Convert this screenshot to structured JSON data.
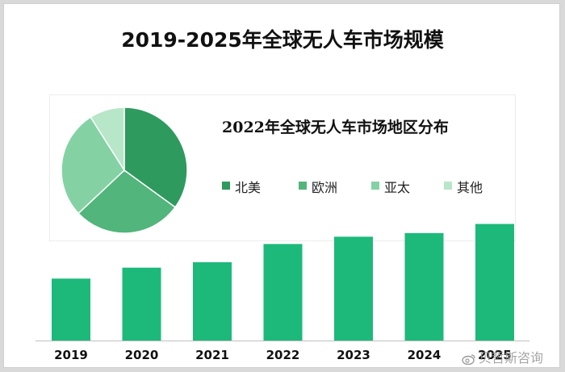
{
  "chart_data": [
    {
      "type": "pie",
      "title": "2022年全球无人车市场地区分布",
      "labels": [
        "北美",
        "欧洲",
        "亚太",
        "其他"
      ],
      "values": [
        35,
        28,
        28,
        9
      ],
      "colors": [
        "#2e9a5e",
        "#52b57b",
        "#84d2a4",
        "#b8e6c9"
      ],
      "legend": "right"
    },
    {
      "type": "bar",
      "title": "2019-2025年全球无人车市场规模",
      "categories": [
        "2019",
        "2020",
        "2021",
        "2022",
        "2023",
        "2024",
        "2025"
      ],
      "values": [
        34,
        40,
        43,
        53,
        57,
        59,
        64
      ],
      "ylim": [
        0,
        70
      ],
      "grid": false,
      "color": "#1cb97b",
      "xlabel": "",
      "ylabel": ""
    }
  ],
  "watermark": {
    "text": "贝哲斯咨询",
    "icon": "weibo-icon"
  }
}
